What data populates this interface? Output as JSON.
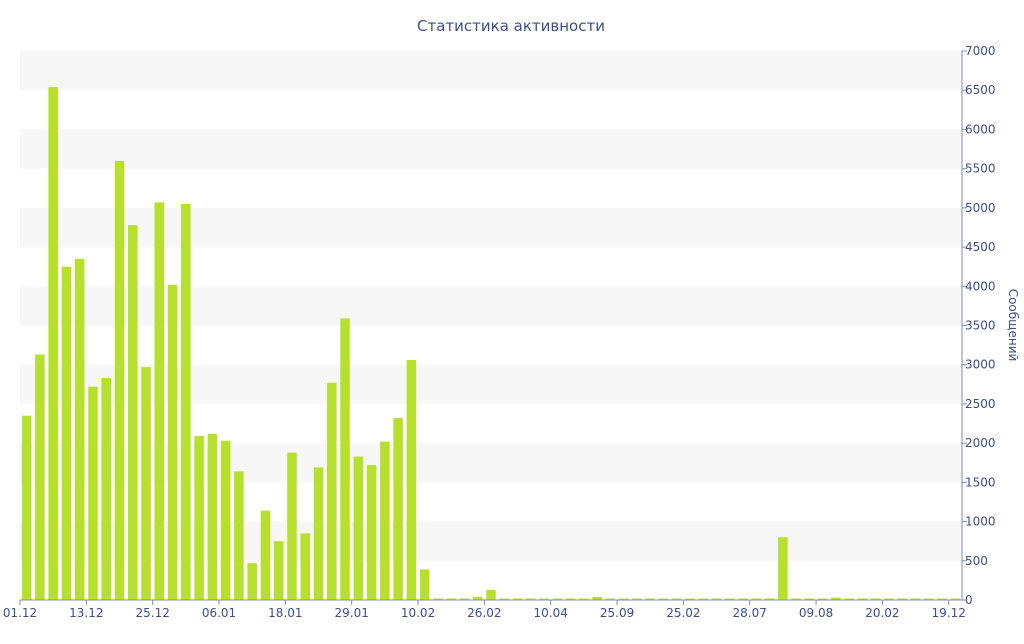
{
  "chart_data": {
    "type": "bar",
    "title": "Статистика активности",
    "ylabel": "Сообщений",
    "xlabel": "",
    "ylim": [
      0,
      7000
    ],
    "yticks": [
      0,
      500,
      1000,
      1500,
      2000,
      2500,
      3000,
      3500,
      4000,
      4500,
      5000,
      5500,
      6000,
      6500,
      7000
    ],
    "x_tick_labels": [
      "01.12",
      "13.12",
      "25.12",
      "06.01",
      "18.01",
      "29.01",
      "10.02",
      "26.02",
      "10.04",
      "25.09",
      "25.02",
      "28.07",
      "09.08",
      "20.02",
      "19.12"
    ],
    "x_tick_label_bar_index": [
      0,
      5,
      10,
      15,
      20,
      25,
      30,
      35,
      40,
      45,
      50,
      55,
      60,
      65,
      70
    ],
    "y_axis_side": "right",
    "grid": "alternating horizontal bands",
    "legend": "none",
    "bar_color": "#b7e02e",
    "values": [
      2350,
      3130,
      6540,
      4250,
      4350,
      2720,
      2830,
      5600,
      4780,
      2970,
      5070,
      4020,
      5050,
      2090,
      2120,
      2030,
      1640,
      470,
      1140,
      750,
      1880,
      850,
      1690,
      2770,
      3590,
      1830,
      1720,
      2020,
      2320,
      3060,
      390,
      15,
      15,
      20,
      40,
      130,
      10,
      10,
      10,
      10,
      15,
      15,
      15,
      40,
      15,
      10,
      10,
      10,
      10,
      10,
      10,
      10,
      10,
      10,
      10,
      20,
      10,
      800,
      10,
      10,
      10,
      30,
      10,
      10,
      10,
      10,
      10,
      10,
      10,
      10,
      10
    ]
  },
  "colors": {
    "title": "#3d4f8c",
    "axis_text": "#3d4f8c",
    "axis_line": "#7f8cb3",
    "band": "#f7f7f7",
    "bar": "#b7e02e"
  }
}
